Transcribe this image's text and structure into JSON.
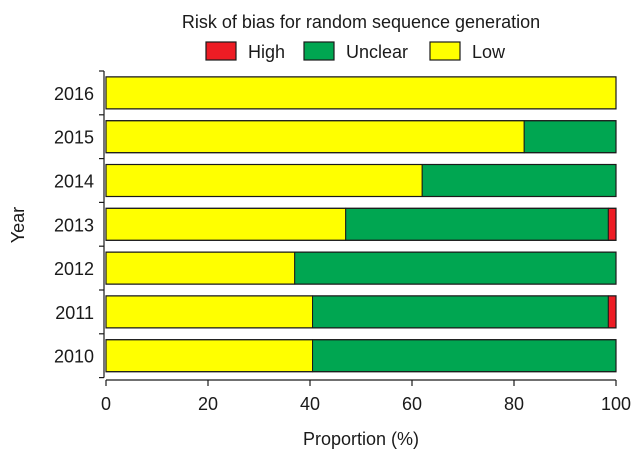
{
  "chart_data": {
    "type": "bar",
    "orientation": "horizontal",
    "stacked": true,
    "title": "Risk of bias for random sequence generation",
    "xlabel": "Proportion (%)",
    "ylabel": "Year",
    "xlim": [
      0,
      100
    ],
    "xticks": [
      "0",
      "20",
      "40",
      "60",
      "80",
      "100"
    ],
    "grid": false,
    "legend_position": "top",
    "categories": [
      "2016",
      "2015",
      "2014",
      "2013",
      "2012",
      "2011",
      "2010"
    ],
    "stack_order": [
      "Low",
      "Unclear",
      "High"
    ],
    "legend_order": [
      "High",
      "Unclear",
      "Low"
    ],
    "series": [
      {
        "name": "Low",
        "color": "#ffff00",
        "values": [
          100,
          82,
          62,
          47,
          37,
          40.5,
          40.5
        ]
      },
      {
        "name": "Unclear",
        "color": "#00a651",
        "values": [
          0,
          18,
          38,
          51.5,
          63,
          58,
          59.5
        ]
      },
      {
        "name": "High",
        "color": "#ed1c24",
        "values": [
          0,
          0,
          0,
          1.5,
          0,
          1.5,
          0
        ]
      }
    ]
  }
}
